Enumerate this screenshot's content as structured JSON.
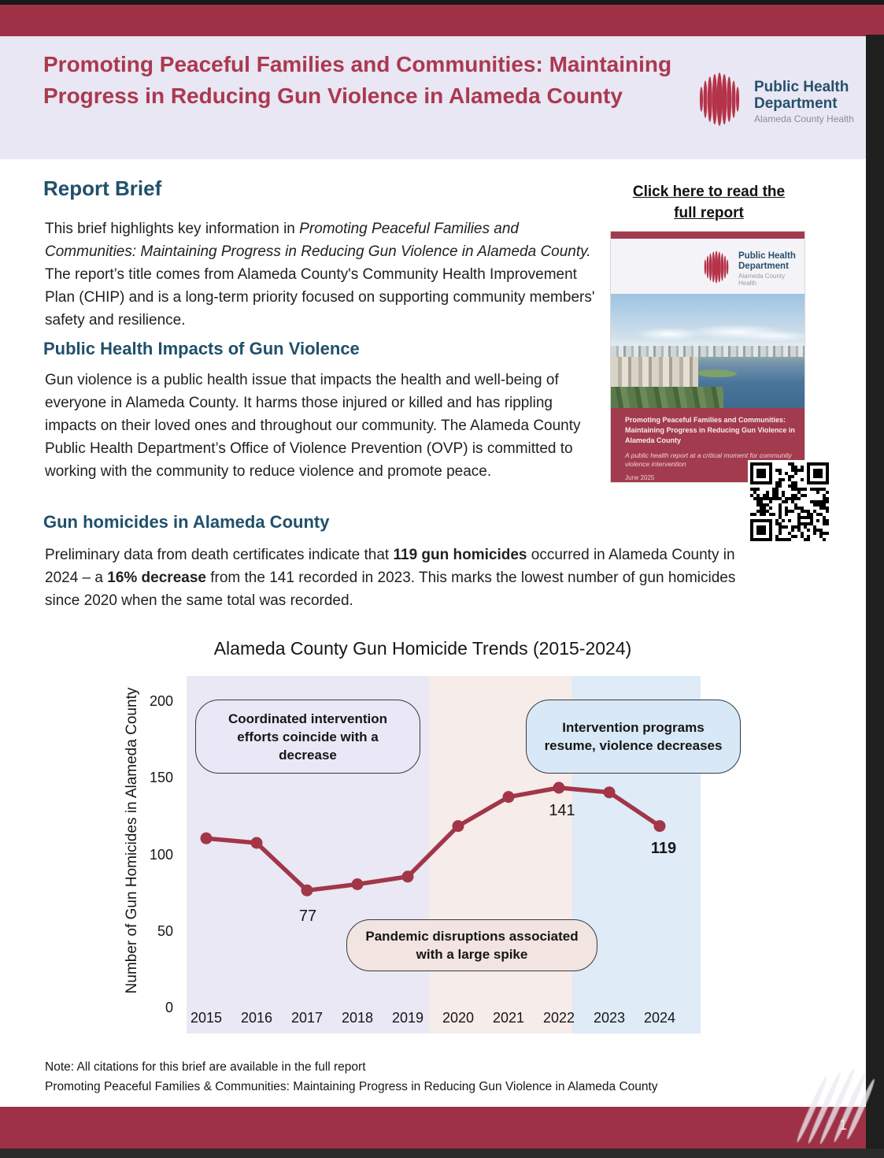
{
  "header": {
    "title": "Promoting Peaceful Families and Communities: Maintaining Progress in Reducing Gun Violence in Alameda County"
  },
  "logo": {
    "name_line1": "Public Health",
    "name_line2": "Department",
    "subtitle": "Alameda County Health"
  },
  "report_brief": {
    "heading": "Report Brief",
    "parts": [
      {
        "text": "This brief highlights key information in "
      },
      {
        "text": "Promoting Peaceful Families and Communities: Maintaining Progress in Reducing Gun Violence in Alameda County."
      },
      {
        "text": " The report’s title comes from Alameda County's Community Health Improvement Plan (CHIP) and is a long-term priority focused on supporting community members' safety and resilience."
      }
    ]
  },
  "impacts": {
    "heading": "Public Health Impacts of Gun Violence",
    "text": "Gun violence is a public health issue that impacts the health and well-being of everyone in Alameda County. It harms those injured or killed and has rippling impacts on their loved ones and throughout our community. The Alameda County Public Health Department’s Office of Violence Prevention (OVP) is committed to working with the community to reduce violence and promote peace."
  },
  "homicides": {
    "heading": "Gun homicides in Alameda County",
    "parts": [
      {
        "text": "Preliminary data from death certificates indicate that "
      },
      {
        "text": "119 gun homicides"
      },
      {
        "text": " occurred in Alameda County in 2024 – a "
      },
      {
        "text": "16% decrease"
      },
      {
        "text": " from the 141 recorded in 2023. This marks the lowest number of gun homicides since 2020 when the same total was recorded."
      }
    ]
  },
  "sidebar": {
    "link_label": "Click here to read the full report",
    "cover": {
      "title": "Promoting Peaceful Families and Communities: Maintaining Progress in Reducing Gun Violence in Alameda County",
      "subtitle": "A public health report at a critical moment for community violence intervention",
      "date": "June 2025",
      "logo_name_line1": "Public Health",
      "logo_name_line2": "Department",
      "logo_subtitle": "Alameda County Health"
    }
  },
  "chart_data": {
    "type": "line",
    "title": "Alameda County Gun Homicide Trends (2015-2024)",
    "xlabel": "",
    "ylabel": "Number of Gun Homicides in Alameda County",
    "categories": [
      "2015",
      "2016",
      "2017",
      "2018",
      "2019",
      "2020",
      "2021",
      "2022",
      "2023",
      "2024"
    ],
    "values": [
      111,
      108,
      77,
      81,
      86,
      119,
      138,
      144,
      141,
      119
    ],
    "ylim": [
      0,
      217
    ],
    "yticks": [
      0,
      50,
      100,
      150,
      200
    ],
    "grid": false,
    "legend": "none",
    "line_color": "#a23648",
    "bands": [
      {
        "from": 2014.6,
        "to": 2019.42,
        "color": "#e9e8f4"
      },
      {
        "from": 2019.42,
        "to": 2022.27,
        "color": "#f6ecea"
      },
      {
        "from": 2022.27,
        "to": 2024.82,
        "color": "#dfebf7"
      }
    ],
    "data_labels": [
      {
        "text": "77"
      },
      {
        "text": "141"
      },
      {
        "text": "119"
      }
    ],
    "annotations": [
      {
        "text": "Coordinated intervention efforts coincide with a decrease"
      },
      {
        "text": "Intervention programs resume, violence decreases"
      },
      {
        "text": "Pandemic disruptions associated with a large spike"
      }
    ]
  },
  "footer": {
    "note1": "Note: All citations for this brief are available in the full report",
    "note2": "Promoting Peaceful Families & Communities: Maintaining Progress in Reducing Gun Violence in Alameda County",
    "page_number": "1"
  }
}
